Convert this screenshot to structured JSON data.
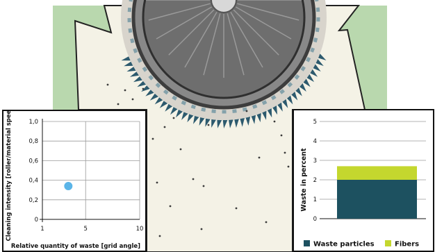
{
  "colors": {
    "background_green": "#b9d8ae",
    "machine_cream": "#f4f2e6",
    "drum_dark": "#6e6e6e",
    "teeth": "#2d5a6e",
    "dot": "#3a3a3a",
    "scatter_point": "#5bb5e8",
    "waste_particles": "#1d5160",
    "fibers": "#c4d72e"
  },
  "icons": [
    "cleaning-drum-icon",
    "saw-teeth-icon"
  ],
  "chart_data": [
    {
      "type": "scatter",
      "title": "",
      "xlabel": "Relative quantity of waste [grid angle]",
      "ylabel": "Cleaning intensity [roller/material speed]",
      "xlim": [
        1,
        10
      ],
      "ylim": [
        0,
        1.0
      ],
      "xticks": [
        1,
        5,
        10
      ],
      "xtick_labels": [
        "1",
        "5",
        "10"
      ],
      "yticks": [
        0,
        0.2,
        0.4,
        0.6,
        0.8,
        1.0
      ],
      "ytick_labels": [
        "0",
        "0,2",
        "0,4",
        "0,6",
        "0,8",
        "1,0"
      ],
      "grid": true,
      "points": [
        {
          "x": 3.4,
          "y": 0.34
        }
      ]
    },
    {
      "type": "bar",
      "stacked": true,
      "title": "",
      "xlabel": "",
      "ylabel": "Waste in percent",
      "ylim": [
        0,
        5
      ],
      "yticks": [
        0,
        1,
        2,
        3,
        4,
        5
      ],
      "ytick_labels": [
        "0",
        "1",
        "2",
        "3",
        "4",
        "5"
      ],
      "grid": true,
      "categories": [
        ""
      ],
      "series": [
        {
          "name": "Waste particles",
          "values": [
            2.0
          ],
          "color": "#1d5160"
        },
        {
          "name": "Fibers",
          "values": [
            0.7
          ],
          "color": "#c4d72e"
        }
      ],
      "legend_position": "bottom"
    }
  ]
}
